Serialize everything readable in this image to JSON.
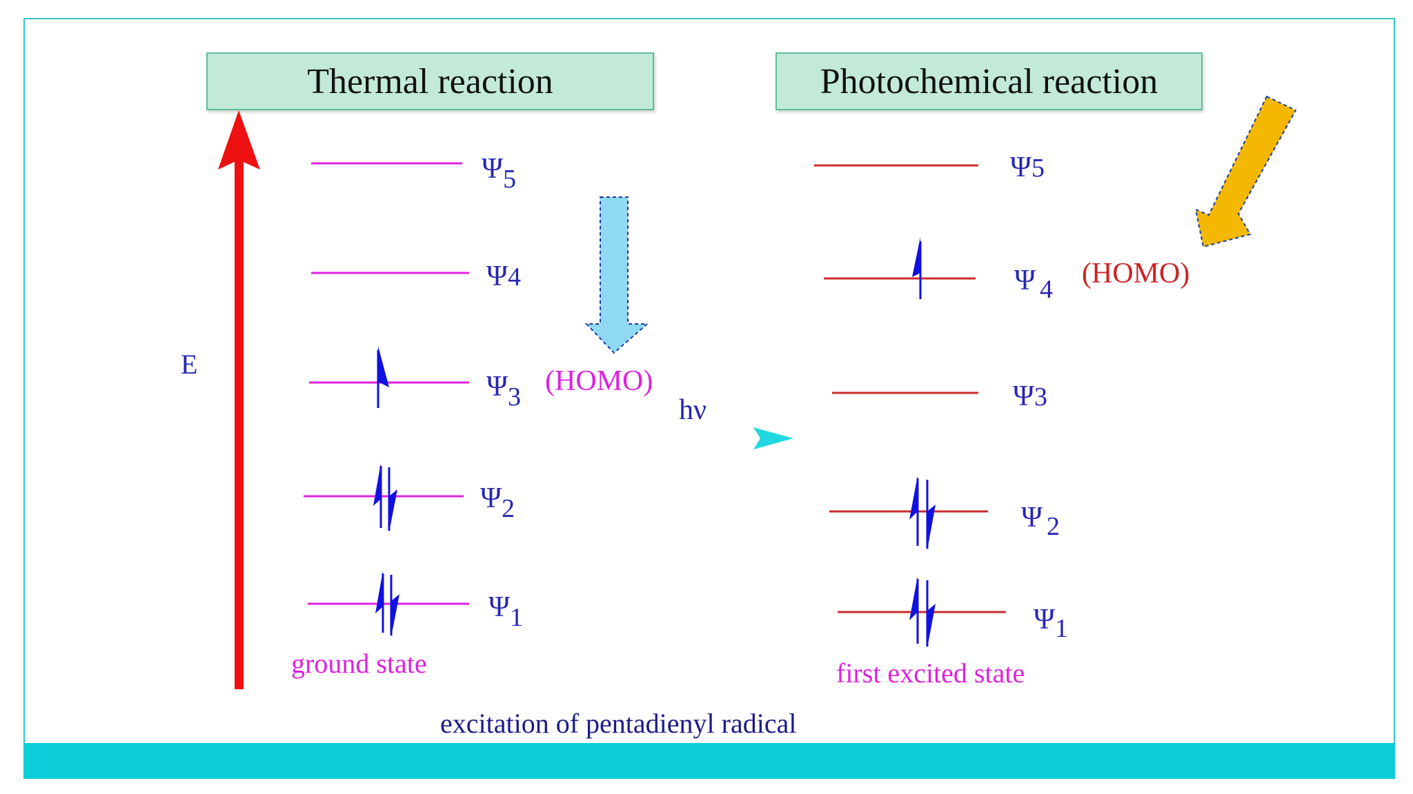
{
  "titles": {
    "thermal": "Thermal reaction",
    "photochemical": "Photochemical reaction"
  },
  "energy_label": "E",
  "ground_state": {
    "orbitals": [
      {
        "symbol": "Ψ",
        "sub": "5"
      },
      {
        "symbol": "Ψ",
        "sub": "4"
      },
      {
        "symbol": "Ψ",
        "sub": "3",
        "tag": "(HOMO)"
      },
      {
        "symbol": "Ψ",
        "sub": "2"
      },
      {
        "symbol": "Ψ",
        "sub": "1"
      }
    ],
    "caption": "ground state"
  },
  "excited_state": {
    "orbitals": [
      {
        "symbol": "Ψ",
        "sub": "5"
      },
      {
        "symbol": "Ψ",
        "sub": "4",
        "tag": "(HOMO)"
      },
      {
        "symbol": "Ψ",
        "sub": "3"
      },
      {
        "symbol": "Ψ",
        "sub": "2"
      },
      {
        "symbol": "Ψ",
        "sub": "1"
      }
    ],
    "caption": "first excited state"
  },
  "transition_label": "hν",
  "caption": "excitation of pentadienyl radical",
  "colors": {
    "ground_level": "#e020e0",
    "excited_level": "#cc2a2a",
    "electron": "#1010e0",
    "psi_label": "#2525b5",
    "ground_text": "#dd22dd",
    "homo_excited": "#cc2222",
    "energy_arrow": "#ee1111",
    "hv_arrow": "#22d8e0",
    "down_arrow": "#8fd9f5",
    "yellow_arrow": "#f5b800"
  },
  "icons": {
    "energy_axis": "up-arrow-icon",
    "transition": "right-arrow-icon",
    "thermal_pointer": "down-arrow-icon",
    "photo_pointer": "diagonal-down-left-arrow-icon"
  }
}
